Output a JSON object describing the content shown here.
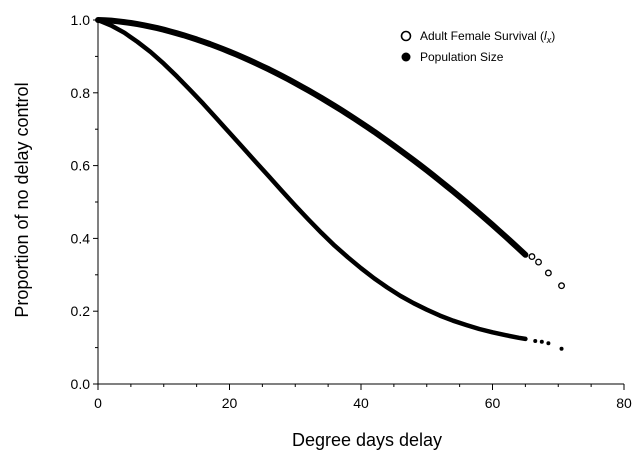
{
  "chart_data": {
    "type": "scatter",
    "title": "",
    "xlabel": "Degree days delay",
    "ylabel": "Proportion of no delay control",
    "xlim": [
      0,
      80
    ],
    "ylim": [
      0,
      1.0
    ],
    "x_ticks": [
      0,
      20,
      40,
      60,
      80
    ],
    "y_ticks": [
      0.0,
      0.2,
      0.4,
      0.6,
      0.8,
      1.0
    ],
    "x_tick_labels": [
      "0",
      "20",
      "40",
      "60",
      "80"
    ],
    "y_tick_labels": [
      "0.0",
      "0.2",
      "0.4",
      "0.6",
      "0.8",
      "1.0"
    ],
    "grid": false,
    "legend_position": "top-right",
    "series": [
      {
        "name": "Adult Female Survival (",
        "name_italic": "l",
        "name_subscript": "x",
        "name_suffix": ")",
        "marker": "open-circle",
        "color": "#000000",
        "points": [
          [
            0,
            1.0
          ],
          [
            1,
            0.998
          ],
          [
            2,
            0.995
          ],
          [
            3,
            0.992
          ],
          [
            4,
            0.988
          ],
          [
            5,
            0.985
          ],
          [
            6,
            0.981
          ],
          [
            7,
            0.977
          ],
          [
            8,
            0.973
          ],
          [
            9,
            0.968
          ],
          [
            10,
            0.963
          ],
          [
            11,
            0.958
          ],
          [
            12,
            0.953
          ],
          [
            13,
            0.947
          ],
          [
            14,
            0.941
          ],
          [
            15,
            0.935
          ],
          [
            16,
            0.929
          ],
          [
            17,
            0.922
          ],
          [
            18,
            0.915
          ],
          [
            19,
            0.908
          ],
          [
            20,
            0.9
          ],
          [
            21,
            0.892
          ],
          [
            22,
            0.884
          ],
          [
            23,
            0.875
          ],
          [
            24,
            0.866
          ],
          [
            25,
            0.857
          ],
          [
            26,
            0.848
          ],
          [
            27,
            0.838
          ],
          [
            28,
            0.828
          ],
          [
            29,
            0.818
          ],
          [
            30,
            0.807
          ],
          [
            31,
            0.796
          ],
          [
            32,
            0.785
          ],
          [
            33,
            0.774
          ],
          [
            34,
            0.762
          ],
          [
            35,
            0.75
          ],
          [
            36,
            0.738
          ],
          [
            37,
            0.725
          ],
          [
            38,
            0.712
          ],
          [
            39,
            0.699
          ],
          [
            40,
            0.686
          ],
          [
            41,
            0.672
          ],
          [
            42,
            0.658
          ],
          [
            43,
            0.644
          ],
          [
            44,
            0.629
          ],
          [
            45,
            0.614
          ],
          [
            46,
            0.599
          ],
          [
            47,
            0.584
          ],
          [
            48,
            0.568
          ],
          [
            49,
            0.552
          ],
          [
            50,
            0.536
          ],
          [
            51,
            0.52
          ],
          [
            52,
            0.503
          ],
          [
            53,
            0.486
          ],
          [
            54,
            0.469
          ],
          [
            55,
            0.452
          ],
          [
            56,
            0.434
          ],
          [
            57,
            0.417
          ],
          [
            58,
            0.399
          ],
          [
            59,
            0.381
          ],
          [
            60,
            0.363
          ],
          [
            61,
            0.345
          ],
          [
            62,
            0.327
          ],
          [
            63,
            0.309
          ],
          [
            64,
            0.29
          ],
          [
            65,
            0.272
          ],
          [
            66,
            0.35
          ],
          [
            67,
            0.335
          ],
          [
            68.5,
            0.305
          ],
          [
            70.5,
            0.27
          ]
        ]
      },
      {
        "name": "Population Size",
        "marker": "filled-circle",
        "color": "#000000",
        "points": [
          [
            0,
            1.0
          ],
          [
            2,
            0.985
          ],
          [
            4,
            0.965
          ],
          [
            6,
            0.94
          ],
          [
            8,
            0.912
          ],
          [
            10,
            0.88
          ],
          [
            12,
            0.845
          ],
          [
            14,
            0.808
          ],
          [
            16,
            0.77
          ],
          [
            18,
            0.73
          ],
          [
            20,
            0.69
          ],
          [
            22,
            0.65
          ],
          [
            24,
            0.61
          ],
          [
            26,
            0.57
          ],
          [
            28,
            0.53
          ],
          [
            30,
            0.49
          ],
          [
            32,
            0.452
          ],
          [
            34,
            0.415
          ],
          [
            36,
            0.38
          ],
          [
            38,
            0.348
          ],
          [
            40,
            0.318
          ],
          [
            42,
            0.29
          ],
          [
            44,
            0.265
          ],
          [
            46,
            0.242
          ],
          [
            48,
            0.222
          ],
          [
            50,
            0.204
          ],
          [
            52,
            0.188
          ],
          [
            54,
            0.174
          ],
          [
            56,
            0.162
          ],
          [
            58,
            0.151
          ],
          [
            60,
            0.142
          ],
          [
            62,
            0.134
          ],
          [
            64,
            0.127
          ],
          [
            65,
            0.124
          ],
          [
            66.5,
            0.118
          ],
          [
            67.5,
            0.116
          ],
          [
            68.5,
            0.112
          ],
          [
            70.5,
            0.097
          ]
        ]
      }
    ]
  }
}
